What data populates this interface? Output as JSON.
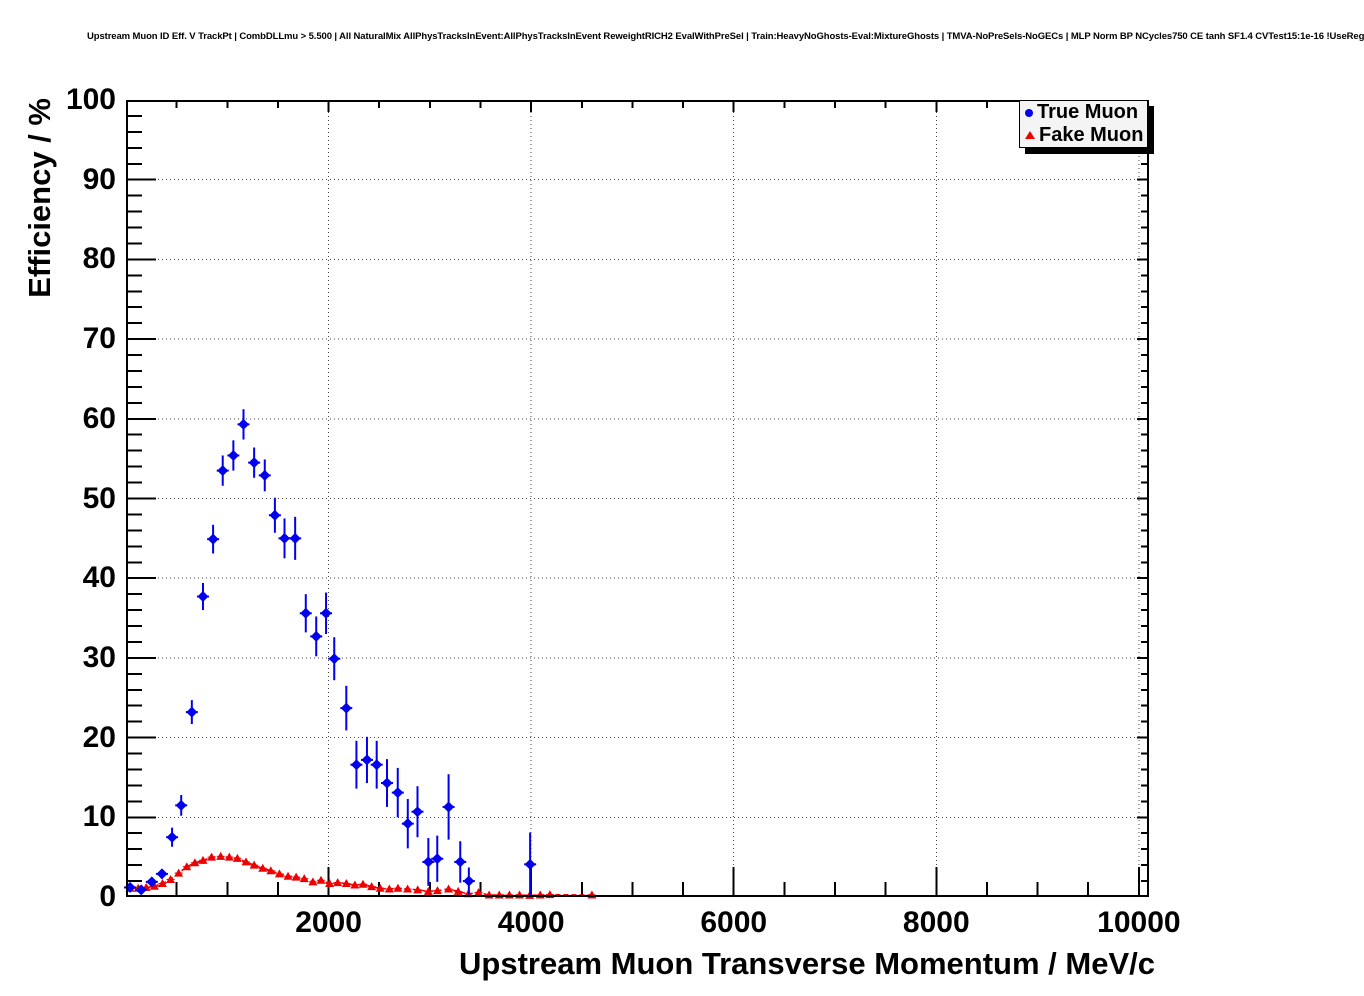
{
  "title": "Upstream Muon ID Eff. V TrackPt | CombDLLmu > 5.500 | All NaturalMix AllPhysTracksInEvent:AllPhysTracksInEvent ReweightRICH2 EvalWithPreSel | Train:HeavyNoGhosts-Eval:MixtureGhosts | TMVA-NoPreSels-NoGECs | MLP Norm BP NCycles750 CE tanh SF1.4 CVTest15:1e-16 !UseReg",
  "colors": {
    "true_muon": "#0000ee",
    "fake_muon": "#ee0000",
    "grid": "#444444",
    "frame": "#000000",
    "legend_fill": "#f4f4f4"
  },
  "chart_data": {
    "type": "scatter",
    "title": "Upstream Muon ID Eff. V TrackPt",
    "xlabel": "Upstream Muon Transverse Momentum / MeV/c",
    "ylabel": "Efficiency / %",
    "xlim": [
      0,
      10100
    ],
    "ylim": [
      0,
      100
    ],
    "x_ticks": [
      2000,
      4000,
      6000,
      8000,
      10000
    ],
    "x_minor_step": 500,
    "y_ticks": [
      0,
      10,
      20,
      30,
      40,
      50,
      60,
      70,
      80,
      90,
      100
    ],
    "y_minor_step": 2,
    "grid": true,
    "legend_position": "top-right",
    "series": [
      {
        "name": "True Muon",
        "marker": "diamond",
        "color": "#0000ee",
        "line": "none",
        "points_format": [
          "x_MeV",
          "efficiency_pct",
          "err_pct"
        ],
        "points": [
          [
            40,
            1.2,
            0.4
          ],
          [
            150,
            0.9,
            0.4
          ],
          [
            255,
            1.9,
            0.5
          ],
          [
            355,
            2.9,
            0.6
          ],
          [
            455,
            7.5,
            1.2
          ],
          [
            545,
            11.5,
            1.3
          ],
          [
            650,
            23.2,
            1.5
          ],
          [
            760,
            37.7,
            1.7
          ],
          [
            860,
            44.9,
            1.8
          ],
          [
            955,
            53.5,
            1.9
          ],
          [
            1060,
            55.4,
            1.9
          ],
          [
            1160,
            59.3,
            1.9
          ],
          [
            1265,
            54.5,
            1.9
          ],
          [
            1370,
            52.9,
            2.0
          ],
          [
            1470,
            47.9,
            2.2
          ],
          [
            1565,
            45.0,
            2.5
          ],
          [
            1670,
            45.0,
            2.7
          ],
          [
            1775,
            35.6,
            2.4
          ],
          [
            1878,
            32.7,
            2.5
          ],
          [
            1975,
            35.6,
            2.6
          ],
          [
            2056,
            29.9,
            2.7
          ],
          [
            2175,
            23.7,
            2.8
          ],
          [
            2275,
            16.6,
            3.0
          ],
          [
            2379,
            17.2,
            2.9
          ],
          [
            2475,
            16.6,
            3.0
          ],
          [
            2577,
            14.3,
            3.0
          ],
          [
            2683,
            13.1,
            3.1
          ],
          [
            2782,
            9.2,
            3.1
          ],
          [
            2878,
            10.7,
            3.2
          ],
          [
            2985,
            4.4,
            3.0
          ],
          [
            3073,
            4.8,
            2.9
          ],
          [
            3185,
            11.3,
            4.1
          ],
          [
            3300,
            4.4,
            2.6
          ],
          [
            3385,
            2.0,
            1.7
          ],
          [
            3990,
            4.1,
            4.0
          ]
        ]
      },
      {
        "name": "Fake Muon",
        "marker": "triangle",
        "color": "#ee0000",
        "line": "dashed",
        "points_format": [
          "x_MeV",
          "efficiency_pct",
          "err_pct"
        ],
        "points": [
          [
            40,
            1.1,
            0.3
          ],
          [
            120,
            1.1,
            0.3
          ],
          [
            200,
            1.2,
            0.3
          ],
          [
            280,
            1.35,
            0.3
          ],
          [
            360,
            1.7,
            0.3
          ],
          [
            440,
            2.2,
            0.35
          ],
          [
            520,
            3.0,
            0.4
          ],
          [
            600,
            3.8,
            0.4
          ],
          [
            680,
            4.3,
            0.4
          ],
          [
            760,
            4.6,
            0.45
          ],
          [
            845,
            5.0,
            0.45
          ],
          [
            935,
            5.1,
            0.45
          ],
          [
            1020,
            5.0,
            0.45
          ],
          [
            1100,
            4.85,
            0.45
          ],
          [
            1185,
            4.4,
            0.4
          ],
          [
            1265,
            4.0,
            0.4
          ],
          [
            1350,
            3.6,
            0.4
          ],
          [
            1430,
            3.3,
            0.4
          ],
          [
            1515,
            2.9,
            0.35
          ],
          [
            1600,
            2.6,
            0.35
          ],
          [
            1680,
            2.5,
            0.35
          ],
          [
            1760,
            2.3,
            0.35
          ],
          [
            1845,
            1.9,
            0.3
          ],
          [
            1925,
            2.1,
            0.3
          ],
          [
            2010,
            1.7,
            0.3
          ],
          [
            2090,
            1.8,
            0.3
          ],
          [
            2175,
            1.7,
            0.3
          ],
          [
            2260,
            1.5,
            0.3
          ],
          [
            2340,
            1.6,
            0.3
          ],
          [
            2425,
            1.3,
            0.25
          ],
          [
            2510,
            1.1,
            0.25
          ],
          [
            2600,
            1.0,
            0.25
          ],
          [
            2685,
            1.1,
            0.25
          ],
          [
            2780,
            1.0,
            0.25
          ],
          [
            2880,
            0.9,
            0.25
          ],
          [
            2985,
            0.7,
            0.2
          ],
          [
            3075,
            0.8,
            0.25
          ],
          [
            3185,
            1.0,
            0.3
          ],
          [
            3280,
            0.7,
            0.25
          ],
          [
            3380,
            0.4,
            0.2
          ],
          [
            3480,
            0.55,
            0.25
          ],
          [
            3585,
            0.25,
            0.15
          ],
          [
            3685,
            0.25,
            0.15
          ],
          [
            3785,
            0.25,
            0.15
          ],
          [
            3885,
            0.25,
            0.15
          ],
          [
            3985,
            0.2,
            0.15
          ],
          [
            4090,
            0.25,
            0.15
          ],
          [
            4185,
            0.3,
            0.2
          ],
          [
            4600,
            0.25,
            0.2
          ]
        ]
      }
    ]
  }
}
